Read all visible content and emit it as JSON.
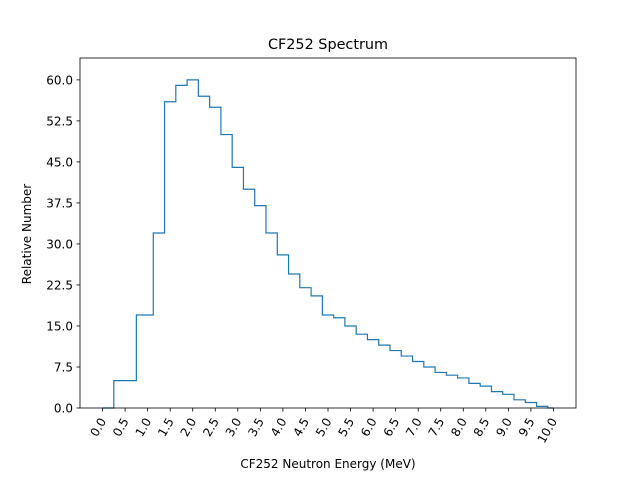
{
  "chart_data": {
    "type": "line",
    "drawstyle": "steps-mid",
    "title": "CF252 Spectrum",
    "xlabel": "CF252 Neutron Energy (MeV)",
    "ylabel": "Relative Number",
    "xlim": [
      -0.5,
      10.5
    ],
    "ylim": [
      0,
      64
    ],
    "xticks": [
      "0.0",
      "0.5",
      "1.0",
      "1.5",
      "2.0",
      "2.5",
      "3.0",
      "3.5",
      "4.0",
      "4.5",
      "5.0",
      "5.5",
      "6.0",
      "6.5",
      "7.0",
      "7.5",
      "8.0",
      "8.5",
      "9.0",
      "9.5",
      "10.0"
    ],
    "yticks": [
      "0.0",
      "7.5",
      "15.0",
      "22.5",
      "30.0",
      "37.5",
      "45.0",
      "52.5",
      "60.0"
    ],
    "xtick_rotation_deg": -60,
    "grid": false,
    "series": [
      {
        "color": "#1f77b4",
        "x": [
          0.0,
          0.5,
          1.0,
          1.25,
          1.5,
          1.75,
          2.0,
          2.25,
          2.5,
          2.75,
          3.0,
          3.25,
          3.5,
          3.75,
          4.0,
          4.25,
          4.5,
          4.75,
          5.0,
          5.25,
          5.5,
          5.75,
          6.0,
          6.25,
          6.5,
          6.75,
          7.0,
          7.25,
          7.5,
          7.75,
          8.0,
          8.25,
          8.5,
          8.75,
          9.0,
          9.25,
          9.5,
          9.75,
          10.0
        ],
        "y": [
          0.0,
          5.0,
          17.0,
          32.0,
          56.0,
          59.0,
          60.0,
          57.0,
          55.0,
          50.0,
          44.0,
          40.0,
          37.0,
          32.0,
          28.0,
          24.5,
          22.0,
          20.5,
          17.0,
          16.5,
          15.0,
          13.5,
          12.5,
          11.5,
          10.5,
          9.5,
          8.5,
          7.5,
          6.5,
          6.0,
          5.5,
          4.5,
          4.0,
          3.0,
          2.5,
          1.5,
          1.0,
          0.3,
          0.0
        ]
      }
    ]
  }
}
